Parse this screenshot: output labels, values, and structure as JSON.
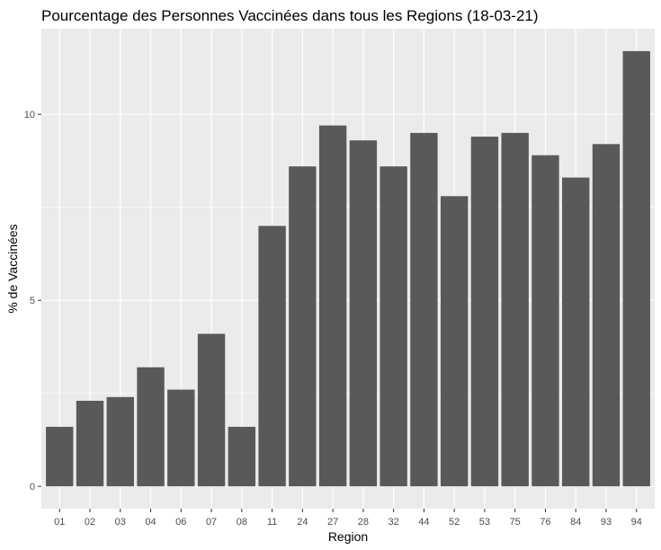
{
  "colors": {
    "panel_background": "#ebebeb",
    "grid_major": "#ffffff",
    "bar_fill": "#595959",
    "tick_text": "#4d4d4d",
    "text": "#000000"
  },
  "chart_data": {
    "type": "bar",
    "title": "Pourcentage des Personnes Vaccinées dans tous les Regions (18-03-21)",
    "xlabel": "Region",
    "ylabel": "% de Vaccinées",
    "categories": [
      "01",
      "02",
      "03",
      "04",
      "06",
      "07",
      "08",
      "11",
      "24",
      "27",
      "28",
      "32",
      "44",
      "52",
      "53",
      "75",
      "76",
      "84",
      "93",
      "94"
    ],
    "values": [
      1.6,
      2.3,
      2.4,
      3.2,
      2.6,
      4.1,
      1.6,
      7.0,
      8.6,
      9.7,
      9.3,
      8.6,
      9.5,
      7.8,
      9.4,
      9.5,
      8.9,
      8.3,
      9.2,
      11.7
    ],
    "yticks": [
      0,
      5,
      10
    ],
    "ylim": [
      -0.6,
      12.3
    ],
    "grid": true,
    "legend": "none"
  }
}
